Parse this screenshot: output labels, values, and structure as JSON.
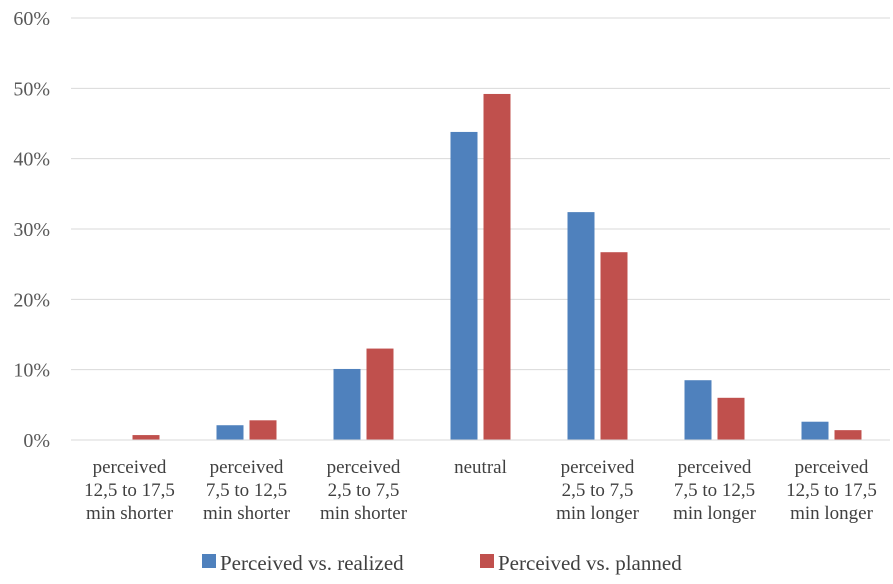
{
  "chart_data": {
    "type": "bar",
    "categories": [
      [
        "perceived",
        "12,5 to 17,5",
        "min shorter"
      ],
      [
        "perceived",
        "7,5 to 12,5",
        "min shorter"
      ],
      [
        "perceived",
        "2,5 to 7,5",
        "min shorter"
      ],
      [
        "neutral"
      ],
      [
        "perceived",
        "2,5 to 7,5",
        "min longer"
      ],
      [
        "perceived",
        "7,5 to 12,5",
        "min longer"
      ],
      [
        "perceived",
        "12,5 to 17,5",
        "min longer"
      ]
    ],
    "series": [
      {
        "name": "Perceived vs. realized",
        "color": "#4F81BD",
        "values": [
          0.0,
          2.1,
          10.1,
          43.8,
          32.4,
          8.5,
          2.6
        ]
      },
      {
        "name": "Perceived vs. planned",
        "color": "#C0504D",
        "values": [
          0.7,
          2.8,
          13.0,
          49.2,
          26.7,
          6.0,
          1.4
        ]
      }
    ],
    "yticks": [
      "0%",
      "10%",
      "20%",
      "30%",
      "40%",
      "50%",
      "60%"
    ],
    "ylim": [
      0,
      60
    ],
    "grid": true,
    "legend_position": "bottom"
  }
}
